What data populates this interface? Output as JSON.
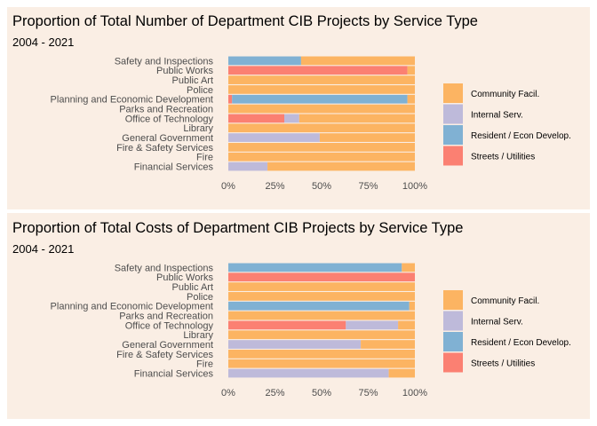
{
  "palette": {
    "background": "#faeee4",
    "community": "#fcb462",
    "internal": "#bebada",
    "resident": "#80b1d3",
    "streets": "#fb8072",
    "text_dark": "#000000",
    "text_axis": "#4d4d4d"
  },
  "chart_data": [
    {
      "type": "bar",
      "orientation": "horizontal",
      "stacked": "percent",
      "title": "Proportion of Total Number of Department CIB Projects by Service Type",
      "subtitle": "2004 - 2021",
      "categories": [
        "Safety and Inspections",
        "Public Works",
        "Public Art",
        "Police",
        "Planning and Economic Development",
        "Parks and Recreation",
        "Office of Technology",
        "Library",
        "General Government",
        "Fire & Safety Services",
        "Fire",
        "Financial Services"
      ],
      "xlim": [
        0,
        100
      ],
      "x_ticks": [
        "0%",
        "25%",
        "50%",
        "75%",
        "100%"
      ],
      "legend_position": "right",
      "series": [
        {
          "name": "Streets / Utilities",
          "color_key": "streets",
          "values": [
            0,
            96,
            0,
            0,
            2,
            0,
            30,
            0,
            0,
            0,
            0,
            0
          ]
        },
        {
          "name": "Resident / Econ Develop.",
          "color_key": "resident",
          "values": [
            39,
            0,
            0,
            0,
            94,
            0,
            0,
            0,
            0,
            0,
            0,
            0
          ]
        },
        {
          "name": "Internal Serv.",
          "color_key": "internal",
          "values": [
            0,
            0,
            0,
            0,
            0,
            0,
            8,
            0,
            49,
            0,
            0,
            21
          ]
        },
        {
          "name": "Community Facil.",
          "color_key": "community",
          "values": [
            61,
            4,
            100,
            100,
            4,
            100,
            62,
            100,
            51,
            100,
            100,
            79
          ]
        }
      ]
    },
    {
      "type": "bar",
      "orientation": "horizontal",
      "stacked": "percent",
      "title": "Proportion of Total Costs of Department CIB Projects by Service Type",
      "subtitle": "2004 - 2021",
      "categories": [
        "Safety and Inspections",
        "Public Works",
        "Public Art",
        "Police",
        "Planning and Economic Development",
        "Parks and Recreation",
        "Office of Technology",
        "Library",
        "General Government",
        "Fire & Safety Services",
        "Fire",
        "Financial Services"
      ],
      "xlim": [
        0,
        100
      ],
      "x_ticks": [
        "0%",
        "25%",
        "50%",
        "75%",
        "100%"
      ],
      "legend_position": "right",
      "series": [
        {
          "name": "Streets / Utilities",
          "color_key": "streets",
          "values": [
            0,
            100,
            0,
            0,
            0,
            0,
            63,
            0,
            0,
            0,
            0,
            0
          ]
        },
        {
          "name": "Resident / Econ Develop.",
          "color_key": "resident",
          "values": [
            93,
            0,
            0,
            0,
            97,
            0,
            0,
            0,
            0,
            0,
            0,
            0
          ]
        },
        {
          "name": "Internal Serv.",
          "color_key": "internal",
          "values": [
            0,
            0,
            0,
            0,
            0,
            0,
            28,
            0,
            71,
            0,
            0,
            86
          ]
        },
        {
          "name": "Community Facil.",
          "color_key": "community",
          "values": [
            7,
            0,
            100,
            100,
            3,
            100,
            9,
            100,
            29,
            100,
            100,
            14
          ]
        }
      ]
    }
  ],
  "legend": [
    {
      "label": "Community Facil.",
      "color_key": "community"
    },
    {
      "label": "Internal Serv.",
      "color_key": "internal"
    },
    {
      "label": "Resident / Econ Develop.",
      "color_key": "resident"
    },
    {
      "label": "Streets / Utilities",
      "color_key": "streets"
    }
  ]
}
